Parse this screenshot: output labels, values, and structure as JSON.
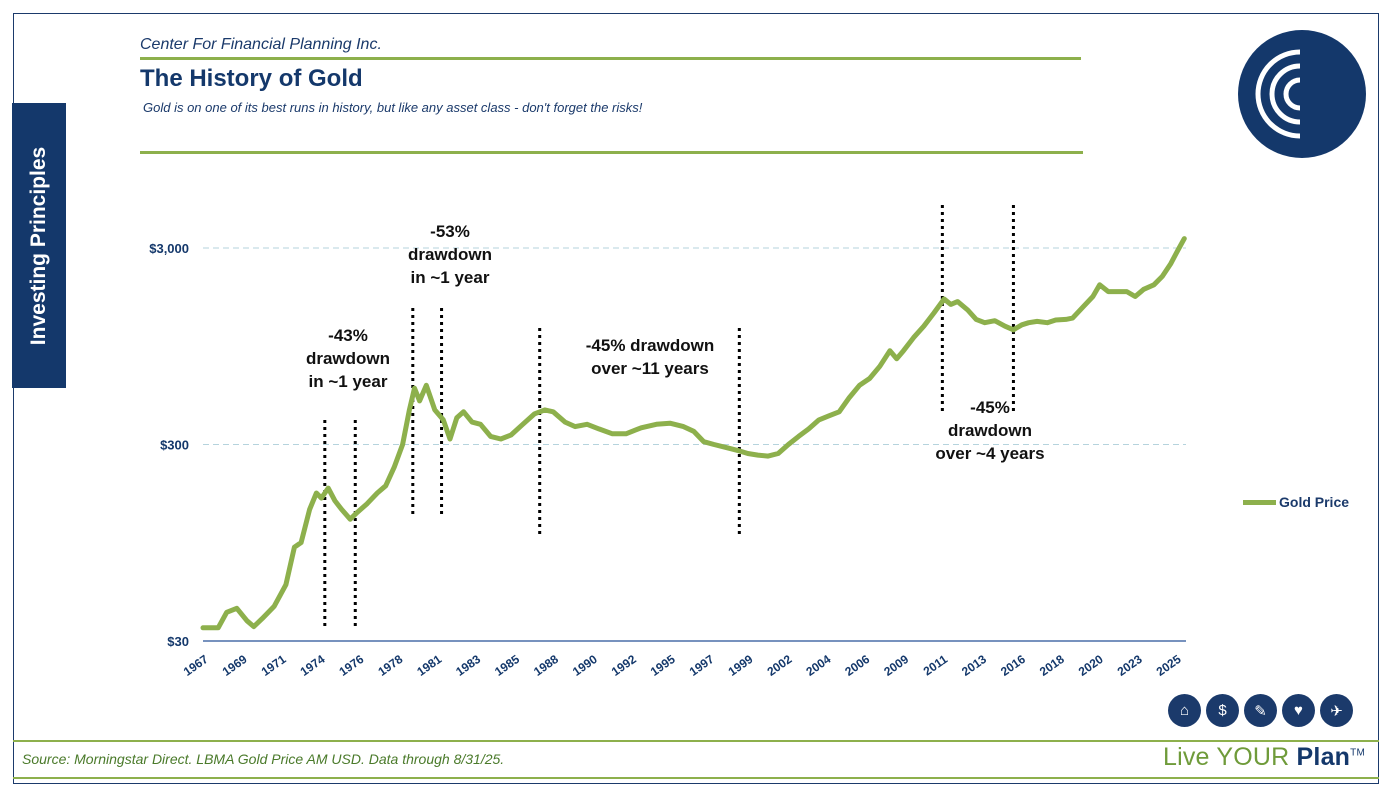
{
  "side_tab": "Investing Principles",
  "company": "Center For Financial Planning Inc.",
  "title": "The History of Gold",
  "subtitle": "Gold is on one of its best runs in history, but like any asset class - don't forget the risks!",
  "source": "Source: Morningstar Direct. LBMA Gold Price AM USD. Data through 8/31/25.",
  "brand": {
    "part1": "Live ",
    "part2": "YOUR ",
    "part3": "Plan",
    "tm": "TM"
  },
  "icons": [
    "home-icon",
    "piggy-bank-icon",
    "graduation-icon",
    "heart-hand-icon",
    "plane-icon"
  ],
  "colors": {
    "navy": "#14386b",
    "green": "#8db04c"
  },
  "chart_data": {
    "type": "line",
    "title": "The History of Gold",
    "ylabel": "",
    "yscale": "log",
    "ylim": [
      30,
      4000
    ],
    "yticks": [
      {
        "value": 30,
        "label": "$30"
      },
      {
        "value": 300,
        "label": "$300"
      },
      {
        "value": 3000,
        "label": "$3,000"
      }
    ],
    "xlim": [
      1967.6,
      2025.7
    ],
    "xticks": [
      {
        "value": 1967.6,
        "label": "1967"
      },
      {
        "value": 1969.9,
        "label": "1969"
      },
      {
        "value": 1972.2,
        "label": "1971"
      },
      {
        "value": 1974.5,
        "label": "1974"
      },
      {
        "value": 1976.8,
        "label": "1976"
      },
      {
        "value": 1979.1,
        "label": "1978"
      },
      {
        "value": 1981.4,
        "label": "1981"
      },
      {
        "value": 1983.7,
        "label": "1983"
      },
      {
        "value": 1986.0,
        "label": "1985"
      },
      {
        "value": 1988.3,
        "label": "1988"
      },
      {
        "value": 1990.6,
        "label": "1990"
      },
      {
        "value": 1992.9,
        "label": "1992"
      },
      {
        "value": 1995.2,
        "label": "1995"
      },
      {
        "value": 1997.5,
        "label": "1997"
      },
      {
        "value": 1999.8,
        "label": "1999"
      },
      {
        "value": 2002.1,
        "label": "2002"
      },
      {
        "value": 2004.4,
        "label": "2004"
      },
      {
        "value": 2006.7,
        "label": "2006"
      },
      {
        "value": 2009.0,
        "label": "2009"
      },
      {
        "value": 2011.3,
        "label": "2011"
      },
      {
        "value": 2013.6,
        "label": "2013"
      },
      {
        "value": 2015.9,
        "label": "2016"
      },
      {
        "value": 2018.2,
        "label": "2018"
      },
      {
        "value": 2020.5,
        "label": "2020"
      },
      {
        "value": 2022.8,
        "label": "2023"
      },
      {
        "value": 2025.1,
        "label": "2025"
      }
    ],
    "legend": "Gold Price",
    "series": [
      {
        "name": "Gold Price",
        "x": [
          1967.6,
          1968.5,
          1969.0,
          1969.6,
          1970.2,
          1970.6,
          1971.1,
          1971.8,
          1972.5,
          1973.0,
          1973.4,
          1973.9,
          1974.3,
          1974.6,
          1975.0,
          1975.4,
          1975.8,
          1976.3,
          1976.7,
          1977.3,
          1977.9,
          1978.4,
          1978.9,
          1979.4,
          1979.8,
          1980.1,
          1980.4,
          1980.8,
          1981.3,
          1981.8,
          1982.2,
          1982.6,
          1983.0,
          1983.5,
          1984.0,
          1984.6,
          1985.2,
          1985.8,
          1986.5,
          1987.2,
          1987.8,
          1988.3,
          1989.0,
          1989.6,
          1990.3,
          1991.0,
          1991.8,
          1992.6,
          1993.5,
          1994.4,
          1995.2,
          1996.0,
          1996.6,
          1997.2,
          1997.8,
          1998.5,
          1999.2,
          1999.8,
          2000.4,
          2001.0,
          2001.6,
          2002.2,
          2002.8,
          2003.4,
          2004.0,
          2004.6,
          2005.2,
          2005.8,
          2006.4,
          2007.0,
          2007.6,
          2008.2,
          2008.6,
          2009.0,
          2009.6,
          2010.2,
          2010.8,
          2011.4,
          2011.8,
          2012.2,
          2012.8,
          2013.3,
          2013.8,
          2014.4,
          2015.0,
          2015.5,
          2016.0,
          2016.4,
          2016.9,
          2017.5,
          2018.0,
          2018.6,
          2019.0,
          2019.6,
          2020.2,
          2020.6,
          2021.1,
          2021.7,
          2022.2,
          2022.7,
          2023.2,
          2023.8,
          2024.3,
          2024.8,
          2025.2,
          2025.6
        ],
        "values": [
          35,
          35,
          42,
          44,
          38,
          35.5,
          39,
          45,
          58,
          90,
          95,
          140,
          170,
          160,
          180,
          155,
          140,
          125,
          135,
          150,
          170,
          185,
          230,
          300,
          450,
          580,
          500,
          600,
          450,
          400,
          320,
          410,
          440,
          390,
          380,
          330,
          320,
          335,
          380,
          430,
          450,
          440,
          390,
          370,
          380,
          360,
          340,
          340,
          365,
          380,
          385,
          370,
          350,
          310,
          300,
          290,
          280,
          270,
          265,
          262,
          270,
          300,
          330,
          360,
          400,
          420,
          440,
          520,
          600,
          650,
          750,
          900,
          820,
          900,
          1050,
          1200,
          1400,
          1650,
          1550,
          1600,
          1450,
          1300,
          1250,
          1280,
          1200,
          1150,
          1220,
          1250,
          1270,
          1250,
          1290,
          1300,
          1320,
          1500,
          1700,
          1950,
          1800,
          1800,
          1800,
          1700,
          1850,
          1950,
          2150,
          2500,
          2900,
          3350
        ]
      }
    ],
    "annotations": [
      {
        "text": [
          "-43%",
          "drawdown",
          "in ~1 year"
        ]
      },
      {
        "text": [
          "-53%",
          "drawdown",
          "in ~1 year"
        ]
      },
      {
        "text": [
          "-45% drawdown",
          "over ~11 years"
        ]
      },
      {
        "text": [
          "-45%",
          "drawdown",
          "over ~4 years"
        ]
      }
    ],
    "markers": [
      1974.8,
      1976.6,
      1980.0,
      1981.7,
      1987.5,
      1999.3,
      2011.3,
      2015.5
    ]
  }
}
